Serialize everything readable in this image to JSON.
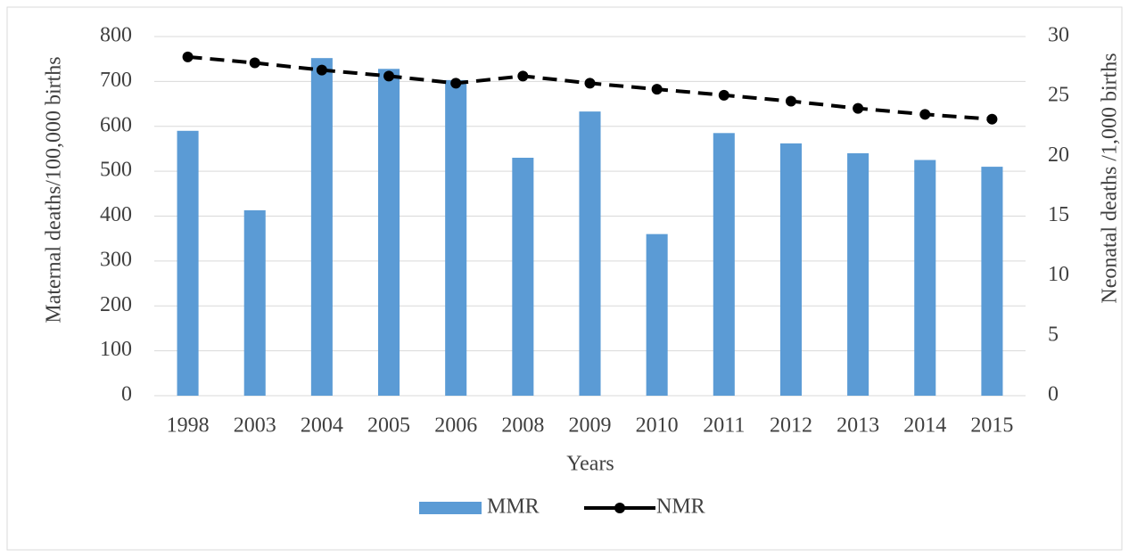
{
  "chart_data": {
    "type": "bar_line",
    "categories": [
      "1998",
      "2003",
      "2004",
      "2005",
      "2006",
      "2008",
      "2009",
      "2010",
      "2011",
      "2012",
      "2013",
      "2014",
      "2015"
    ],
    "series": [
      {
        "name": "MMR",
        "type": "bar",
        "color": "#5b9bd5",
        "values": [
          590,
          413,
          752,
          728,
          703,
          530,
          633,
          360,
          585,
          562,
          540,
          525,
          510
        ]
      },
      {
        "name": "NMR",
        "type": "line",
        "axis": "y2",
        "color": "#000000",
        "values": [
          28.3,
          27.8,
          27.2,
          26.7,
          26.1,
          26.7,
          26.1,
          25.6,
          25.1,
          24.6,
          24.0,
          23.5,
          23.1
        ]
      }
    ],
    "x_label": "Years",
    "y_label": "Maternal deaths/100,000 births",
    "y2_label": "Neonatal deaths /1,000 births",
    "ylim": [
      0,
      800
    ],
    "yticks": [
      0,
      100,
      200,
      300,
      400,
      500,
      600,
      700,
      800
    ],
    "y2lim": [
      0,
      30
    ],
    "y2ticks": [
      0,
      5,
      10,
      15,
      20,
      25,
      30
    ],
    "grid": true,
    "legend": "bottom"
  }
}
